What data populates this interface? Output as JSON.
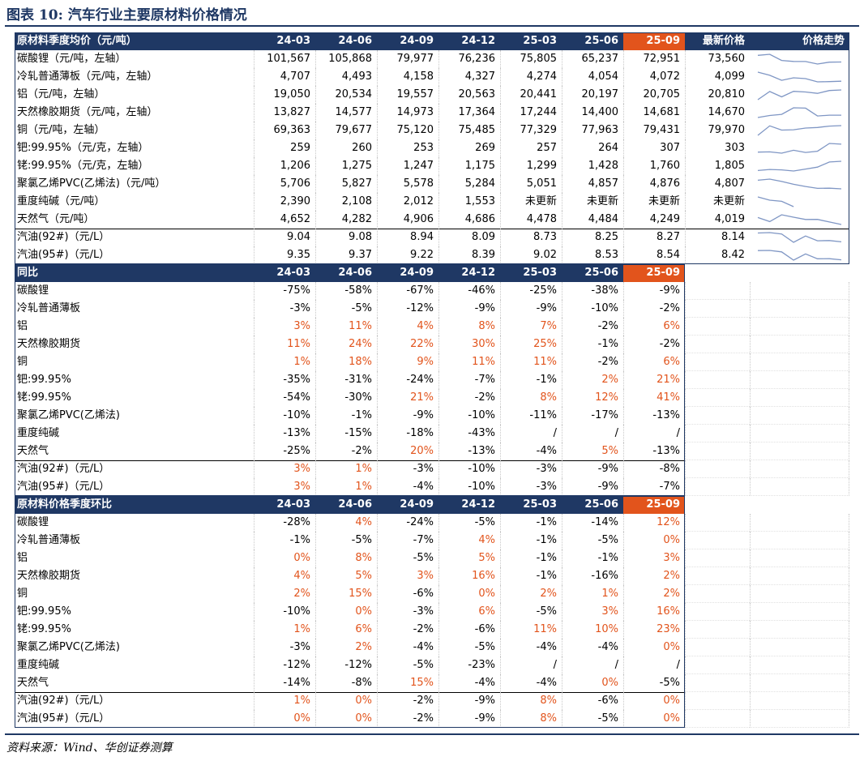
{
  "header": {
    "title": "图表 10:  汽车行业主要原材料价格情况"
  },
  "price_table": {
    "columns": [
      "原材料季度均价（元/吨）",
      "24-03",
      "24-06",
      "24-09",
      "24-12",
      "25-03",
      "25-06",
      "25-09",
      "最新价格",
      "价格走势"
    ],
    "rows": [
      {
        "name": "碳酸锂（元/吨，左轴）",
        "values": [
          "101,567",
          "105,868",
          "79,977",
          "76,236",
          "75,805",
          "65,237",
          "72,951",
          "73,560"
        ]
      },
      {
        "name": "冷轧普通薄板（元/吨，左轴）",
        "values": [
          "4,707",
          "4,493",
          "4,158",
          "4,327",
          "4,274",
          "4,054",
          "4,072",
          "4,099"
        ]
      },
      {
        "name": "铝（元/吨，左轴）",
        "values": [
          "19,050",
          "20,534",
          "19,557",
          "20,563",
          "20,441",
          "20,197",
          "20,705",
          "20,810"
        ]
      },
      {
        "name": "天然橡胶期货（元/吨，左轴）",
        "values": [
          "13,827",
          "14,577",
          "14,973",
          "17,364",
          "17,244",
          "14,400",
          "14,681",
          "14,670"
        ]
      },
      {
        "name": "铜（元/吨，左轴）",
        "values": [
          "69,363",
          "79,677",
          "75,120",
          "75,485",
          "77,329",
          "77,963",
          "79,431",
          "79,970"
        ]
      },
      {
        "name": "钯:99.95%（元/克，左轴）",
        "values": [
          "259",
          "260",
          "253",
          "269",
          "257",
          "264",
          "307",
          "303"
        ]
      },
      {
        "name": "铑:99.95%（元/克，左轴）",
        "values": [
          "1,206",
          "1,275",
          "1,247",
          "1,175",
          "1,299",
          "1,428",
          "1,760",
          "1,805"
        ]
      },
      {
        "name": "聚氯乙烯PVC(乙烯法)（元/吨）",
        "values": [
          "5,706",
          "5,827",
          "5,578",
          "5,284",
          "5,051",
          "4,857",
          "4,876",
          "4,807"
        ]
      },
      {
        "name": "重度纯碱（元/吨）",
        "values": [
          "2,390",
          "2,108",
          "2,012",
          "1,553",
          "未更新",
          "未更新",
          "未更新",
          "未更新"
        ]
      },
      {
        "name": "天然气（元/吨）",
        "values": [
          "4,652",
          "4,282",
          "4,906",
          "4,686",
          "4,478",
          "4,484",
          "4,249",
          "4,019"
        ]
      },
      {
        "name": "汽油(92#)（元/L）",
        "values": [
          "9.04",
          "9.08",
          "8.94",
          "8.09",
          "8.73",
          "8.25",
          "8.27",
          "8.14"
        ]
      },
      {
        "name": "汽油(95#)（元/L）",
        "values": [
          "9.35",
          "9.37",
          "9.22",
          "8.39",
          "9.02",
          "8.53",
          "8.54",
          "8.42"
        ]
      }
    ]
  },
  "yoy_table": {
    "columns": [
      "同比",
      "24-03",
      "24-06",
      "24-09",
      "24-12",
      "25-03",
      "25-06",
      "25-09"
    ],
    "rows": [
      {
        "name": "碳酸锂",
        "values": [
          "-75%",
          "-58%",
          "-67%",
          "-46%",
          "-25%",
          "-38%",
          "-9%"
        ]
      },
      {
        "name": "冷轧普通薄板",
        "values": [
          "-3%",
          "-5%",
          "-12%",
          "-9%",
          "-9%",
          "-10%",
          "-2%"
        ]
      },
      {
        "name": "铝",
        "values": [
          "3%",
          "11%",
          "4%",
          "8%",
          "7%",
          "-2%",
          "6%"
        ]
      },
      {
        "name": "天然橡胶期货",
        "values": [
          "11%",
          "24%",
          "22%",
          "30%",
          "25%",
          "-1%",
          "-2%"
        ]
      },
      {
        "name": "铜",
        "values": [
          "1%",
          "18%",
          "9%",
          "11%",
          "11%",
          "-2%",
          "6%"
        ]
      },
      {
        "name": "钯:99.95%",
        "values": [
          "-35%",
          "-31%",
          "-24%",
          "-7%",
          "-1%",
          "2%",
          "21%"
        ]
      },
      {
        "name": "铑:99.95%",
        "values": [
          "-54%",
          "-30%",
          "21%",
          "-2%",
          "8%",
          "12%",
          "41%"
        ]
      },
      {
        "name": "聚氯乙烯PVC(乙烯法)",
        "values": [
          "-10%",
          "-1%",
          "-9%",
          "-10%",
          "-11%",
          "-17%",
          "-13%"
        ]
      },
      {
        "name": "重度纯碱",
        "values": [
          "-13%",
          "-15%",
          "-18%",
          "-43%",
          "/",
          "/",
          "/"
        ]
      },
      {
        "name": "天然气",
        "values": [
          "-25%",
          "-2%",
          "20%",
          "-13%",
          "-4%",
          "5%",
          "-13%"
        ]
      },
      {
        "name": "汽油(92#)（元/L）",
        "values": [
          "3%",
          "1%",
          "-3%",
          "-10%",
          "-3%",
          "-9%",
          "-8%"
        ]
      },
      {
        "name": "汽油(95#)（元/L）",
        "values": [
          "3%",
          "1%",
          "-4%",
          "-10%",
          "-3%",
          "-9%",
          "-7%"
        ]
      }
    ]
  },
  "qoq_table": {
    "columns": [
      "原材料价格季度环比",
      "24-03",
      "24-06",
      "24-09",
      "24-12",
      "25-03",
      "25-06",
      "25-09"
    ],
    "rows": [
      {
        "name": "碳酸锂",
        "values": [
          "-28%",
          "4%",
          "-24%",
          "-5%",
          "-1%",
          "-14%",
          "12%"
        ]
      },
      {
        "name": "冷轧普通薄板",
        "values": [
          "-1%",
          "-5%",
          "-7%",
          "4%",
          "-1%",
          "-5%",
          "0%"
        ]
      },
      {
        "name": "铝",
        "values": [
          "0%",
          "8%",
          "-5%",
          "5%",
          "-1%",
          "-1%",
          "3%"
        ]
      },
      {
        "name": "天然橡胶期货",
        "values": [
          "4%",
          "5%",
          "3%",
          "16%",
          "-1%",
          "-16%",
          "2%"
        ]
      },
      {
        "name": "铜",
        "values": [
          "2%",
          "15%",
          "-6%",
          "0%",
          "2%",
          "1%",
          "2%"
        ]
      },
      {
        "name": "钯:99.95%",
        "values": [
          "-10%",
          "0%",
          "-3%",
          "6%",
          "-5%",
          "3%",
          "16%"
        ]
      },
      {
        "name": "铑:99.95%",
        "values": [
          "1%",
          "6%",
          "-2%",
          "-6%",
          "11%",
          "10%",
          "23%"
        ]
      },
      {
        "name": "聚氯乙烯PVC(乙烯法)",
        "values": [
          "-3%",
          "2%",
          "-4%",
          "-5%",
          "-4%",
          "-4%",
          "0%"
        ]
      },
      {
        "name": "重度纯碱",
        "values": [
          "-12%",
          "-12%",
          "-5%",
          "-23%",
          "/",
          "/",
          "/"
        ]
      },
      {
        "name": "天然气",
        "values": [
          "-14%",
          "-8%",
          "15%",
          "-4%",
          "-4%",
          "0%",
          "-5%"
        ]
      },
      {
        "name": "汽油(92#)（元/L）",
        "values": [
          "1%",
          "0%",
          "-2%",
          "-9%",
          "8%",
          "-6%",
          "0%"
        ]
      },
      {
        "name": "汽油(95#)（元/L）",
        "values": [
          "0%",
          "0%",
          "-2%",
          "-9%",
          "8%",
          "-5%",
          "0%"
        ]
      }
    ]
  },
  "footer": {
    "source": "资料来源：Wind、华创证券测算"
  }
}
